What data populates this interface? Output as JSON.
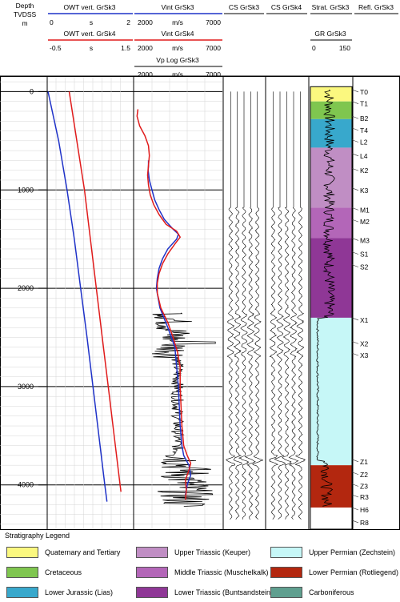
{
  "depth_header": {
    "line1": "Depth",
    "line2": "TVDSS",
    "line3": "m"
  },
  "tracks": {
    "owt3": {
      "title": "OWT vert. GrSk3",
      "min": "0",
      "unit": "s",
      "max": "2",
      "color": "#1f32c8"
    },
    "owt4": {
      "title": "OWT vert. GrSk4",
      "min": "-0.5",
      "unit": "s",
      "max": "1.5",
      "color": "#e01b1b"
    },
    "vint3": {
      "title": "Vint GrSk3",
      "min": "2000",
      "unit": "m/s",
      "max": "7000",
      "color": "#1f32c8"
    },
    "vint4": {
      "title": "Vint GrSk4",
      "min": "2000",
      "unit": "m/s",
      "max": "7000",
      "color": "#e01b1b"
    },
    "vp": {
      "title": "Vp Log GrSk3",
      "min": "2000",
      "unit": "m/s",
      "max": "7000",
      "color": "#000000"
    },
    "cs3": {
      "title": "CS GrSk3"
    },
    "cs4": {
      "title": "CS GrSk4"
    },
    "strat": {
      "title": "Strat. GrSk3"
    },
    "refl": {
      "title": "Refl. GrSk3"
    },
    "gr": {
      "title": "GR GrSk3",
      "min": "0",
      "max": "150"
    }
  },
  "chart_data": {
    "type": "line",
    "depth_ticks": [
      0,
      1000,
      2000,
      3000,
      4000
    ],
    "depth_range": [
      -150,
      4450
    ],
    "series": [
      {
        "name": "OWT vert. GrSk3",
        "color": "#1f32c8",
        "xlim": [
          0,
          2
        ],
        "depth": [
          0,
          500,
          1000,
          1500,
          2000,
          2500,
          3000,
          3500,
          4000,
          4170
        ],
        "values": [
          0.0,
          0.25,
          0.45,
          0.62,
          0.77,
          0.92,
          1.06,
          1.2,
          1.34,
          1.39
        ]
      },
      {
        "name": "OWT vert. GrSk4",
        "color": "#e01b1b",
        "xlim": [
          -0.5,
          1.5
        ],
        "depth": [
          0,
          500,
          1000,
          1500,
          2000,
          2500,
          3000,
          3500,
          4000,
          4070
        ],
        "values": [
          0.0,
          0.18,
          0.36,
          0.5,
          0.64,
          0.78,
          0.92,
          1.06,
          1.2,
          1.22
        ]
      },
      {
        "name": "Vint GrSk3",
        "color": "#1f32c8",
        "xlim": [
          2000,
          7000
        ],
        "depth": [
          700,
          760,
          800,
          900,
          1000,
          1100,
          1200,
          1300,
          1400,
          1450,
          1500,
          1600,
          1700,
          1800,
          1900,
          2000,
          2200,
          2400,
          2600,
          2800,
          3000,
          3200,
          3400,
          3600,
          3700,
          3800,
          3900,
          4000,
          4100
        ],
        "values": [
          2800,
          2800,
          2780,
          2850,
          3000,
          3150,
          3400,
          3700,
          4200,
          4500,
          4400,
          3900,
          3600,
          3400,
          3300,
          3250,
          3450,
          3900,
          4300,
          4400,
          4500,
          4550,
          4600,
          4700,
          4800,
          5100,
          5200,
          5000,
          4900
        ]
      },
      {
        "name": "Vint GrSk4",
        "color": "#e01b1b",
        "xlim": [
          2000,
          7000
        ],
        "depth": [
          180,
          250,
          350,
          450,
          550,
          650,
          750,
          850,
          950,
          1050,
          1150,
          1250,
          1350,
          1420,
          1480,
          1550,
          1650,
          1750,
          1850,
          1950,
          2050,
          2200,
          2350,
          2500,
          2650,
          2800,
          3000,
          3200,
          3400,
          3600,
          3700,
          3780,
          3850,
          3950,
          4050,
          4150
        ],
        "values": [
          2200,
          2150,
          2300,
          2600,
          2800,
          2850,
          2800,
          2750,
          2800,
          2900,
          3100,
          3400,
          3800,
          4400,
          4600,
          4300,
          3900,
          3600,
          3400,
          3300,
          3300,
          3500,
          3900,
          4200,
          4450,
          4600,
          4600,
          4650,
          4700,
          4800,
          5000,
          5200,
          5100,
          4900,
          4950,
          4900
        ]
      },
      {
        "name": "Vp Log GrSk3",
        "color": "#000000",
        "xlim": [
          2000,
          7000
        ]
      }
    ],
    "strat_units": [
      {
        "from": -50,
        "to": 100,
        "color": "#fbf87f"
      },
      {
        "from": 100,
        "to": 280,
        "color": "#7fc64f"
      },
      {
        "from": 280,
        "to": 570,
        "color": "#38a8cc"
      },
      {
        "from": 570,
        "to": 1180,
        "color": "#c08ec4"
      },
      {
        "from": 1180,
        "to": 1490,
        "color": "#b366b8"
      },
      {
        "from": 1490,
        "to": 2300,
        "color": "#8f3796"
      },
      {
        "from": 2300,
        "to": 3800,
        "color": "#c6f7f7"
      },
      {
        "from": 3800,
        "to": 4230,
        "color": "#b3270f"
      },
      {
        "from": 4230,
        "to": 4450,
        "color": "#ffffff"
      }
    ],
    "strat_markers": [
      {
        "label": "T0",
        "depth": -20
      },
      {
        "label": "T1",
        "depth": 100
      },
      {
        "label": "B2",
        "depth": 250
      },
      {
        "label": "T4",
        "depth": 370
      },
      {
        "label": "L2",
        "depth": 490
      },
      {
        "label": "L4",
        "depth": 630
      },
      {
        "label": "K2",
        "depth": 780
      },
      {
        "label": "K3",
        "depth": 980
      },
      {
        "label": "M1",
        "depth": 1180
      },
      {
        "label": "M2",
        "depth": 1300
      },
      {
        "label": "M3",
        "depth": 1490
      },
      {
        "label": "S1",
        "depth": 1630
      },
      {
        "label": "S2",
        "depth": 1760
      },
      {
        "label": "X1",
        "depth": 2300
      },
      {
        "label": "X2",
        "depth": 2540
      },
      {
        "label": "X3",
        "depth": 2660
      },
      {
        "label": "Z1",
        "depth": 3740
      },
      {
        "label": "Z2",
        "depth": 3870
      },
      {
        "label": "Z3",
        "depth": 3990
      },
      {
        "label": "R3",
        "depth": 4100
      },
      {
        "label": "H6",
        "depth": 4230
      },
      {
        "label": "R8",
        "depth": 4360
      }
    ]
  },
  "legend": {
    "title": "Stratigraphy Legend",
    "items": [
      {
        "label": "Quaternary and Tertiary",
        "color": "#fbf87f"
      },
      {
        "label": "Upper Triassic (Keuper)",
        "color": "#c08ec4"
      },
      {
        "label": "Upper Permian (Zechstein)",
        "color": "#c6f7f7"
      },
      {
        "label": "Cretaceous",
        "color": "#7fc64f"
      },
      {
        "label": "Middle Triassic (Muschelkalk)",
        "color": "#b366b8"
      },
      {
        "label": "Lower Permian (Rotliegend)",
        "color": "#b3270f"
      },
      {
        "label": "Lower Jurassic (Lias)",
        "color": "#38a8cc"
      },
      {
        "label": "Lower Triassic (Buntsandstein)",
        "color": "#8f3796"
      },
      {
        "label": "Carboniferous",
        "color": "#5f9f8f"
      }
    ]
  }
}
